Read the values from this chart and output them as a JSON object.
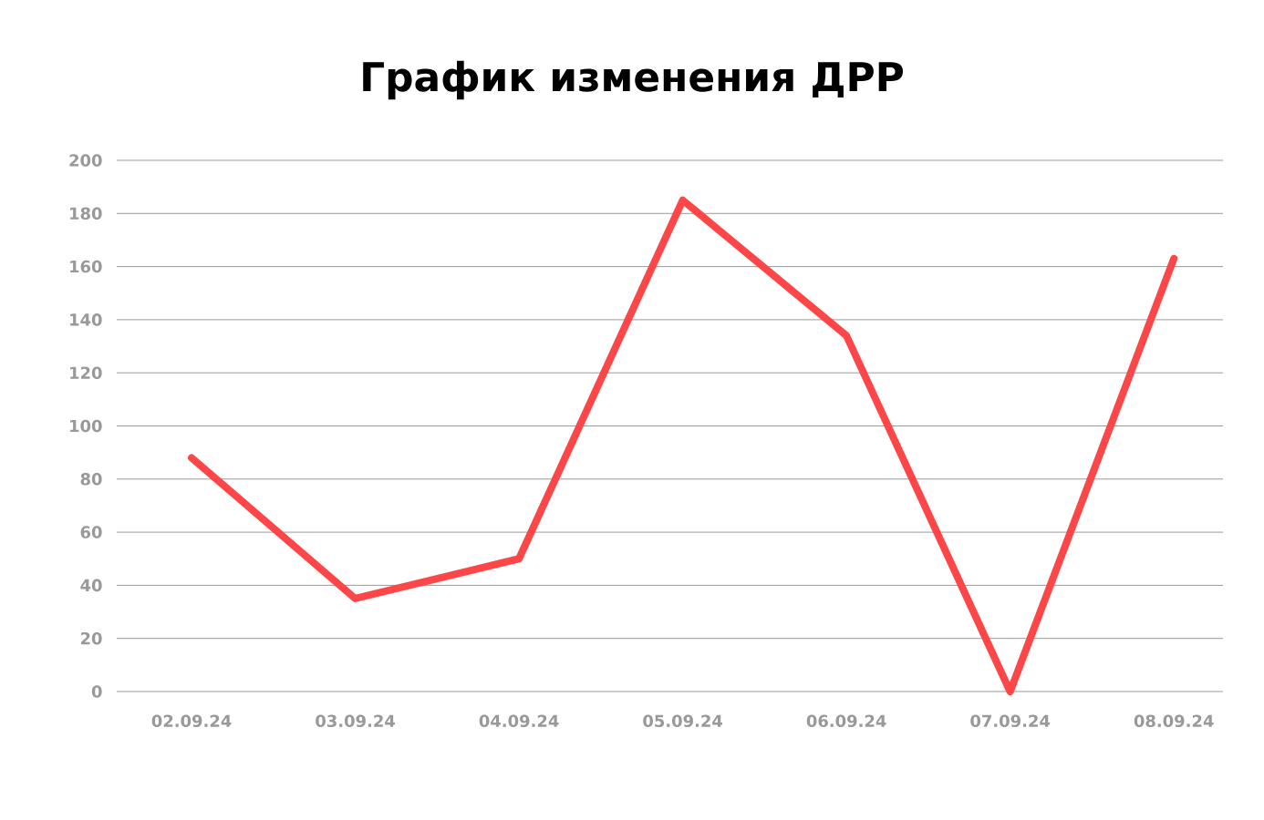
{
  "chart_data": {
    "type": "line",
    "title": "График изменения ДРР",
    "categories": [
      "02.09.24",
      "03.09.24",
      "04.09.24",
      "05.09.24",
      "06.09.24",
      "07.09.24",
      "08.09.24"
    ],
    "series": [
      {
        "color": "#fc4648",
        "values": [
          88,
          35,
          50,
          185,
          134,
          0,
          163
        ]
      }
    ],
    "ylim": [
      0,
      200
    ],
    "yticks": [
      0,
      20,
      40,
      60,
      80,
      100,
      120,
      140,
      160,
      180,
      200
    ],
    "grid": "y",
    "line_style": "solid",
    "marker": "none"
  }
}
